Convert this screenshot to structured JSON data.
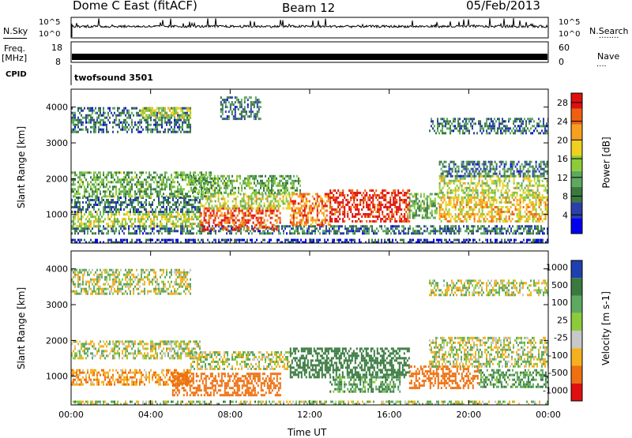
{
  "header": {
    "station": "Dome C East (fitACF)",
    "beam": "Beam 12",
    "date": "05/Feb/2013"
  },
  "status_panel": {
    "nsky_label": "N.Sky",
    "nsearch_label": "N.Search",
    "nsearch_marker": "........",
    "freq_label": "Freq.",
    "freq_unit": "[MHz]",
    "nave_label": "Nave",
    "nave_marker": "....",
    "cpid_label": "CPID",
    "cpid_value": "twofsound 3501",
    "noise_ticks_left": [
      "10^5",
      "10^0"
    ],
    "noise_ticks_right": [
      "10^5",
      "10^0"
    ],
    "freq_ticks": [
      "18",
      "8"
    ],
    "nave_ticks": [
      "60",
      "0"
    ]
  },
  "chart_data": [
    {
      "type": "heatmap",
      "title": "",
      "xlabel": "Time UT",
      "ylabel": "Slant Range [km]",
      "x_ticks": [
        "00:00",
        "04:00",
        "08:00",
        "12:00",
        "16:00",
        "20:00",
        "00:00"
      ],
      "xlim_hours": [
        0,
        24
      ],
      "y_ticks": [
        "4000",
        "3000",
        "2000",
        "1000"
      ],
      "ylim": [
        200,
        4500
      ],
      "colorbar": {
        "label": "Power [dB]",
        "ticks": [
          "28",
          "24",
          "20",
          "16",
          "12",
          "8",
          "4"
        ],
        "range": [
          0,
          30
        ],
        "colors": [
          "#0000ee",
          "#2b3fa8",
          "#3a7a40",
          "#5fa860",
          "#8ccc3a",
          "#f0d020",
          "#f5a020",
          "#ee6010",
          "#e01010"
        ]
      },
      "echo_bands": [
        {
          "from_h": 0.0,
          "to_h": 24.0,
          "range_km": [
            220,
            320
          ],
          "level": 4
        },
        {
          "from_h": 0.0,
          "to_h": 24.0,
          "range_km": [
            500,
            700
          ],
          "level": 8
        },
        {
          "from_h": 0.0,
          "to_h": 6.5,
          "range_km": [
            700,
            1100
          ],
          "level": 16
        },
        {
          "from_h": 0.0,
          "to_h": 6.5,
          "range_km": [
            1100,
            1500
          ],
          "level": 8
        },
        {
          "from_h": 0.0,
          "to_h": 7.0,
          "range_km": [
            1500,
            2200
          ],
          "level": 12
        },
        {
          "from_h": 0.0,
          "to_h": 6.0,
          "range_km": [
            3300,
            4000
          ],
          "level": 8
        },
        {
          "from_h": 3.5,
          "to_h": 6.0,
          "range_km": [
            3700,
            4000
          ],
          "level": 16
        },
        {
          "from_h": 6.5,
          "to_h": 10.5,
          "range_km": [
            600,
            1200
          ],
          "level": 26
        },
        {
          "from_h": 6.5,
          "to_h": 11.0,
          "range_km": [
            1200,
            1600
          ],
          "level": 16
        },
        {
          "from_h": 6.0,
          "to_h": 11.5,
          "range_km": [
            1600,
            2100
          ],
          "level": 12
        },
        {
          "from_h": 7.5,
          "to_h": 9.5,
          "range_km": [
            3700,
            4300
          ],
          "level": 8
        },
        {
          "from_h": 11.0,
          "to_h": 13.0,
          "range_km": [
            700,
            1600
          ],
          "level": 24
        },
        {
          "from_h": 13.0,
          "to_h": 17.0,
          "range_km": [
            800,
            1700
          ],
          "level": 28
        },
        {
          "from_h": 17.0,
          "to_h": 18.5,
          "range_km": [
            900,
            1600
          ],
          "level": 12
        },
        {
          "from_h": 18.5,
          "to_h": 24.0,
          "range_km": [
            800,
            1500
          ],
          "level": 20
        },
        {
          "from_h": 18.5,
          "to_h": 24.0,
          "range_km": [
            1500,
            2100
          ],
          "level": 16
        },
        {
          "from_h": 18.5,
          "to_h": 24.0,
          "range_km": [
            2100,
            2500
          ],
          "level": 8
        },
        {
          "from_h": 18.0,
          "to_h": 24.0,
          "range_km": [
            3300,
            3700
          ],
          "level": 8
        }
      ]
    },
    {
      "type": "heatmap",
      "title": "",
      "xlabel": "Time UT",
      "ylabel": "Slant Range [km]",
      "x_ticks": [
        "00:00",
        "04:00",
        "08:00",
        "12:00",
        "16:00",
        "20:00",
        "00:00"
      ],
      "xlim_hours": [
        0,
        24
      ],
      "y_ticks": [
        "4000",
        "3000",
        "2000",
        "1000"
      ],
      "ylim": [
        200,
        4500
      ],
      "colorbar": {
        "label": "Velocity [m s-1]",
        "ticks": [
          "1000",
          "500",
          "100",
          "25",
          "-25",
          "-100",
          "-500",
          "-1000"
        ],
        "colors": [
          "#2040b0",
          "#3a7a40",
          "#5fa860",
          "#8ccc3a",
          "#c8c8c8",
          "#f5b020",
          "#ee7010",
          "#e01010"
        ]
      },
      "echo_bands": [
        {
          "from_h": 0.0,
          "to_h": 24.0,
          "range_km": [
            220,
            320
          ],
          "level": 25
        },
        {
          "from_h": 0.0,
          "to_h": 6.5,
          "range_km": [
            1500,
            2000
          ],
          "level": 0
        },
        {
          "from_h": 0.0,
          "to_h": 6.0,
          "range_km": [
            3300,
            4000
          ],
          "level": 0
        },
        {
          "from_h": 0.0,
          "to_h": 6.0,
          "range_km": [
            800,
            1200
          ],
          "level": -100
        },
        {
          "from_h": 5.0,
          "to_h": 10.5,
          "range_km": [
            500,
            1100
          ],
          "level": -300
        },
        {
          "from_h": 6.0,
          "to_h": 11.0,
          "range_km": [
            1200,
            1700
          ],
          "level": 0
        },
        {
          "from_h": 11.0,
          "to_h": 17.0,
          "range_km": [
            1000,
            1800
          ],
          "level": 300
        },
        {
          "from_h": 13.0,
          "to_h": 16.5,
          "range_km": [
            600,
            1000
          ],
          "level": 100
        },
        {
          "from_h": 17.0,
          "to_h": 20.5,
          "range_km": [
            700,
            1300
          ],
          "level": -300
        },
        {
          "from_h": 18.0,
          "to_h": 24.0,
          "range_km": [
            1300,
            2100
          ],
          "level": 0
        },
        {
          "from_h": 20.5,
          "to_h": 24.0,
          "range_km": [
            700,
            1200
          ],
          "level": 100
        },
        {
          "from_h": 18.0,
          "to_h": 24.0,
          "range_km": [
            3300,
            3700
          ],
          "level": 0
        }
      ]
    }
  ]
}
